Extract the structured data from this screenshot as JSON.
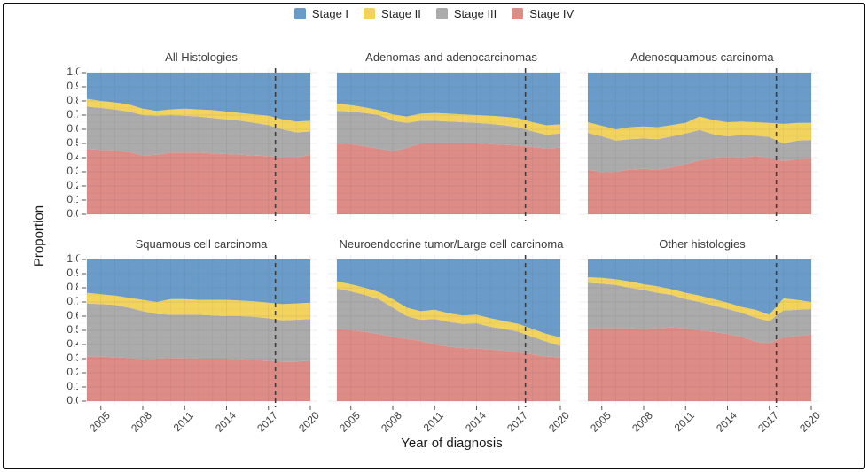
{
  "figure": {
    "y_axis_title": "Proportion",
    "x_axis_title": "Year of diagnosis",
    "y_tick_labels": [
      "1.0",
      "0.9",
      "0.8",
      "0.7",
      "0.6",
      "0.5",
      "0.4",
      "0.3",
      "0.2",
      "0.1",
      "0.0"
    ]
  },
  "legend": {
    "items": [
      {
        "label": "Stage I",
        "color": "#6A9BC9"
      },
      {
        "label": "Stage II",
        "color": "#F2D35E"
      },
      {
        "label": "Stage III",
        "color": "#ABABAB"
      },
      {
        "label": "Stage IV",
        "color": "#DD8C86"
      }
    ]
  },
  "chart_data": {
    "type": "area",
    "stacked": true,
    "xlabel": "Year of diagnosis",
    "ylabel": "Proportion",
    "ylim": [
      0,
      1
    ],
    "grid": true,
    "legend_position": "top",
    "x": [
      2004,
      2005,
      2006,
      2007,
      2008,
      2009,
      2010,
      2011,
      2012,
      2013,
      2014,
      2015,
      2016,
      2017,
      2018,
      2019,
      2020
    ],
    "x_tick_labels": [
      "2005",
      "2008",
      "2011",
      "2014",
      "2017",
      "2020"
    ],
    "reference_line_x": 2017.5,
    "reference_line_style": "dashed",
    "stack_order": [
      "Stage IV",
      "Stage III",
      "Stage II",
      "Stage I"
    ],
    "series_colors": {
      "Stage I": "#6A9BC9",
      "Stage II": "#F2D35E",
      "Stage III": "#ABABAB",
      "Stage IV": "#DD8C86"
    },
    "panels": [
      {
        "title": "All Histologies",
        "series": {
          "Stage IV": [
            0.46,
            0.455,
            0.45,
            0.44,
            0.415,
            0.42,
            0.435,
            0.435,
            0.435,
            0.43,
            0.425,
            0.42,
            0.415,
            0.41,
            0.4,
            0.4,
            0.42
          ],
          "Stage III": [
            0.3,
            0.295,
            0.29,
            0.285,
            0.285,
            0.275,
            0.265,
            0.26,
            0.255,
            0.25,
            0.245,
            0.24,
            0.23,
            0.22,
            0.2,
            0.178,
            0.165
          ],
          "Stage II": [
            0.055,
            0.05,
            0.05,
            0.05,
            0.045,
            0.035,
            0.04,
            0.05,
            0.05,
            0.055,
            0.055,
            0.055,
            0.06,
            0.065,
            0.07,
            0.077,
            0.075
          ],
          "Stage I": [
            0.185,
            0.2,
            0.21,
            0.225,
            0.255,
            0.27,
            0.26,
            0.255,
            0.26,
            0.265,
            0.275,
            0.285,
            0.295,
            0.305,
            0.33,
            0.345,
            0.34
          ]
        }
      },
      {
        "title": "Adenomas and adenocarcinomas",
        "series": {
          "Stage IV": [
            0.5,
            0.495,
            0.48,
            0.465,
            0.445,
            0.47,
            0.5,
            0.5,
            0.5,
            0.5,
            0.5,
            0.495,
            0.49,
            0.485,
            0.475,
            0.465,
            0.47
          ],
          "Stage III": [
            0.23,
            0.23,
            0.235,
            0.235,
            0.215,
            0.175,
            0.16,
            0.16,
            0.155,
            0.15,
            0.145,
            0.143,
            0.138,
            0.13,
            0.11,
            0.097,
            0.1
          ],
          "Stage II": [
            0.05,
            0.045,
            0.04,
            0.035,
            0.045,
            0.045,
            0.05,
            0.055,
            0.055,
            0.055,
            0.055,
            0.057,
            0.06,
            0.063,
            0.065,
            0.066,
            0.065
          ],
          "Stage I": [
            0.22,
            0.23,
            0.245,
            0.265,
            0.295,
            0.31,
            0.29,
            0.285,
            0.29,
            0.295,
            0.3,
            0.305,
            0.312,
            0.322,
            0.35,
            0.372,
            0.365
          ]
        }
      },
      {
        "title": "Adenosquamous carcinoma",
        "series": {
          "Stage IV": [
            0.315,
            0.295,
            0.3,
            0.315,
            0.32,
            0.315,
            0.33,
            0.355,
            0.38,
            0.4,
            0.405,
            0.4,
            0.41,
            0.4,
            0.375,
            0.39,
            0.4
          ],
          "Stage III": [
            0.26,
            0.255,
            0.22,
            0.215,
            0.215,
            0.215,
            0.22,
            0.215,
            0.215,
            0.165,
            0.145,
            0.16,
            0.145,
            0.145,
            0.125,
            0.13,
            0.125
          ],
          "Stage II": [
            0.075,
            0.075,
            0.08,
            0.085,
            0.085,
            0.085,
            0.08,
            0.075,
            0.095,
            0.1,
            0.1,
            0.095,
            0.095,
            0.1,
            0.138,
            0.125,
            0.12
          ],
          "Stage I": [
            0.35,
            0.375,
            0.4,
            0.385,
            0.38,
            0.385,
            0.37,
            0.355,
            0.31,
            0.335,
            0.35,
            0.345,
            0.35,
            0.355,
            0.362,
            0.355,
            0.355
          ]
        }
      },
      {
        "title": "Squamous cell carcinoma",
        "series": {
          "Stage IV": [
            0.315,
            0.315,
            0.31,
            0.305,
            0.295,
            0.3,
            0.305,
            0.305,
            0.3,
            0.3,
            0.3,
            0.295,
            0.29,
            0.285,
            0.28,
            0.28,
            0.285
          ],
          "Stage III": [
            0.375,
            0.37,
            0.37,
            0.355,
            0.34,
            0.315,
            0.305,
            0.305,
            0.31,
            0.305,
            0.3,
            0.305,
            0.305,
            0.3,
            0.29,
            0.295,
            0.295
          ],
          "Stage II": [
            0.075,
            0.07,
            0.065,
            0.07,
            0.08,
            0.085,
            0.11,
            0.11,
            0.105,
            0.11,
            0.115,
            0.11,
            0.11,
            0.11,
            0.115,
            0.115,
            0.115
          ],
          "Stage I": [
            0.235,
            0.245,
            0.255,
            0.27,
            0.285,
            0.3,
            0.28,
            0.28,
            0.285,
            0.285,
            0.285,
            0.29,
            0.295,
            0.305,
            0.315,
            0.31,
            0.305
          ]
        }
      },
      {
        "title": "Neuroendocrine tumor/Large cell carcinoma",
        "series": {
          "Stage IV": [
            0.51,
            0.5,
            0.49,
            0.475,
            0.455,
            0.44,
            0.425,
            0.4,
            0.385,
            0.375,
            0.37,
            0.365,
            0.355,
            0.345,
            0.33,
            0.315,
            0.31
          ],
          "Stage III": [
            0.285,
            0.275,
            0.26,
            0.245,
            0.205,
            0.16,
            0.15,
            0.18,
            0.175,
            0.17,
            0.18,
            0.16,
            0.155,
            0.145,
            0.125,
            0.105,
            0.08
          ],
          "Stage II": [
            0.05,
            0.05,
            0.05,
            0.05,
            0.06,
            0.06,
            0.06,
            0.065,
            0.06,
            0.06,
            0.06,
            0.06,
            0.055,
            0.055,
            0.055,
            0.055,
            0.06
          ],
          "Stage I": [
            0.155,
            0.175,
            0.2,
            0.23,
            0.28,
            0.34,
            0.365,
            0.355,
            0.38,
            0.395,
            0.39,
            0.415,
            0.435,
            0.455,
            0.49,
            0.525,
            0.55
          ]
        }
      },
      {
        "title": "Other histologies",
        "series": {
          "Stage IV": [
            0.515,
            0.515,
            0.515,
            0.515,
            0.51,
            0.515,
            0.52,
            0.515,
            0.5,
            0.49,
            0.475,
            0.455,
            0.42,
            0.41,
            0.45,
            0.46,
            0.47
          ],
          "Stage III": [
            0.32,
            0.315,
            0.305,
            0.285,
            0.275,
            0.25,
            0.23,
            0.205,
            0.2,
            0.185,
            0.175,
            0.17,
            0.17,
            0.155,
            0.19,
            0.185,
            0.18
          ],
          "Stage II": [
            0.04,
            0.04,
            0.04,
            0.045,
            0.04,
            0.045,
            0.04,
            0.045,
            0.045,
            0.045,
            0.045,
            0.04,
            0.055,
            0.045,
            0.085,
            0.07,
            0.05
          ],
          "Stage I": [
            0.125,
            0.13,
            0.14,
            0.155,
            0.175,
            0.19,
            0.21,
            0.235,
            0.255,
            0.28,
            0.305,
            0.335,
            0.355,
            0.39,
            0.275,
            0.285,
            0.3
          ]
        }
      }
    ]
  }
}
